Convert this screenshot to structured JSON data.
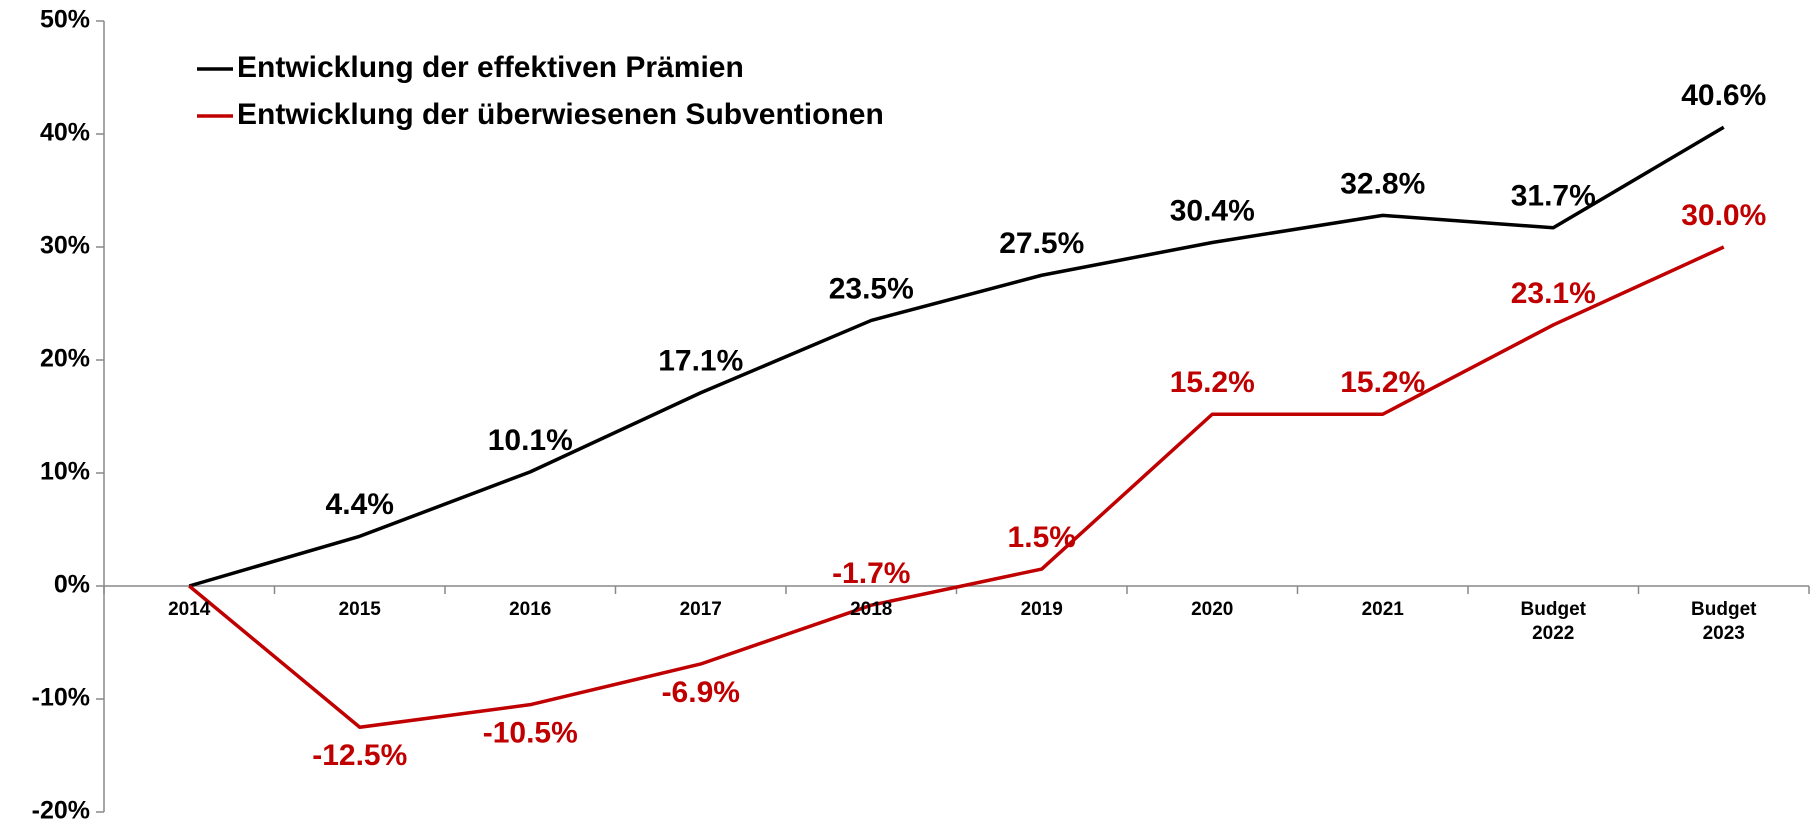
{
  "chart_data": {
    "type": "line",
    "categories": [
      "2014",
      "2015",
      "2016",
      "2017",
      "2018",
      "2019",
      "2020",
      "2021",
      "Budget 2022",
      "Budget 2023"
    ],
    "series": [
      {
        "name": "Entwicklung der effektiven Prämien",
        "color": "#000000",
        "values": [
          0,
          4.4,
          10.1,
          17.1,
          23.5,
          27.5,
          30.4,
          32.8,
          31.7,
          40.6
        ],
        "value_labels": [
          null,
          "4.4%",
          "10.1%",
          "17.1%",
          "23.5%",
          "27.5%",
          "30.4%",
          "32.8%",
          "31.7%",
          "40.6%"
        ]
      },
      {
        "name": "Entwicklung der überwiesenen Subventionen",
        "color": "#c00000",
        "values": [
          0,
          -12.5,
          -10.5,
          -6.9,
          -1.7,
          1.5,
          15.2,
          15.2,
          23.1,
          30.0
        ],
        "value_labels": [
          null,
          "-12.5%",
          "-10.5%",
          "-6.9%",
          "-1.7%",
          "1.5%",
          "15.2%",
          "15.2%",
          "23.1%",
          "30.0%"
        ]
      }
    ],
    "ylim": [
      -20,
      50
    ],
    "yticks": [
      {
        "value": -20,
        "label": "-20%"
      },
      {
        "value": -10,
        "label": "-10%"
      },
      {
        "value": 0,
        "label": "0%"
      },
      {
        "value": 10,
        "label": "10%"
      },
      {
        "value": 20,
        "label": "20%"
      },
      {
        "value": 30,
        "label": "30%"
      },
      {
        "value": 40,
        "label": "40%"
      },
      {
        "value": 50,
        "label": "50%"
      }
    ],
    "grid": false,
    "legend": "top-left"
  }
}
